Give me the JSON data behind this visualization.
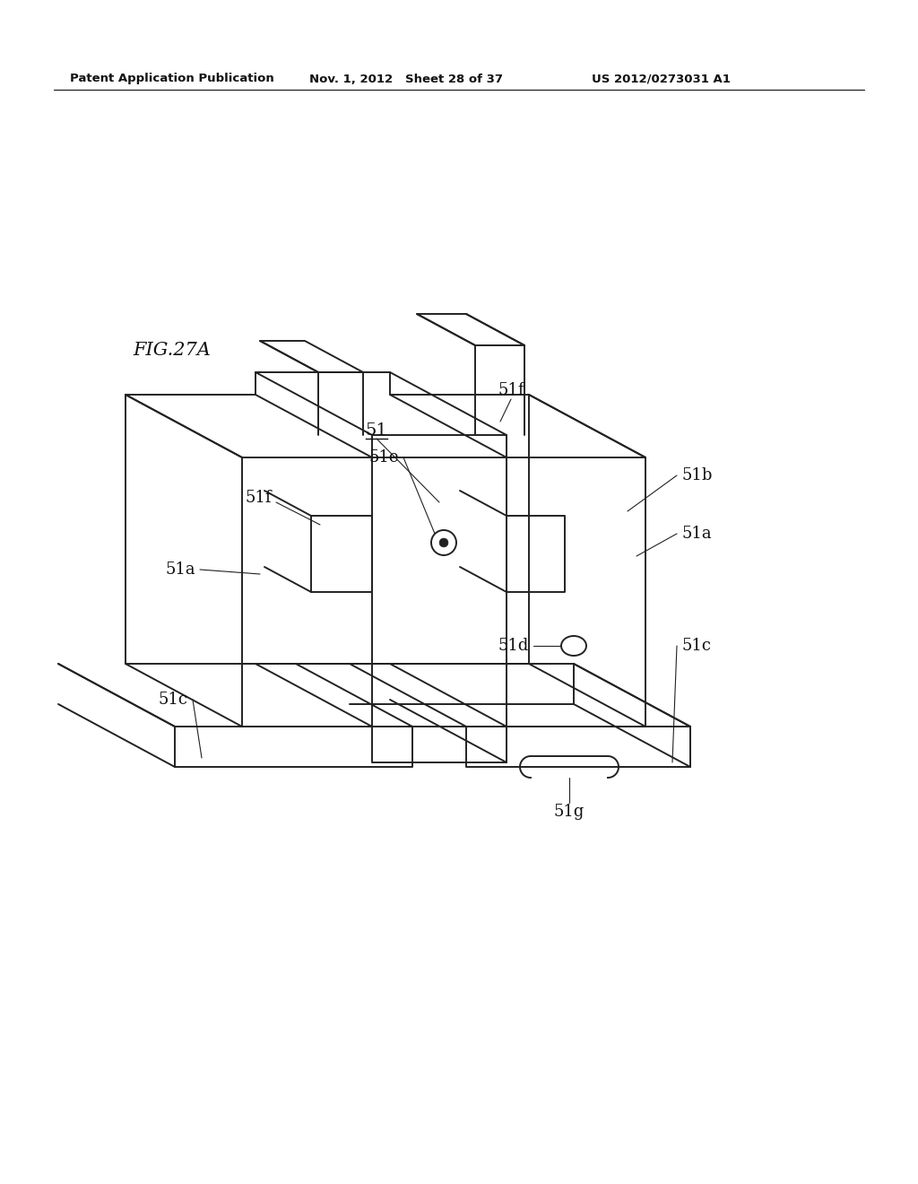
{
  "header_left": "Patent Application Publication",
  "header_mid": "Nov. 1, 2012   Sheet 28 of 37",
  "header_right": "US 2012/0273031 A1",
  "fig_label": "FIG.27A",
  "bg_color": "#ffffff",
  "line_color": "#222222",
  "line_width": 1.4
}
